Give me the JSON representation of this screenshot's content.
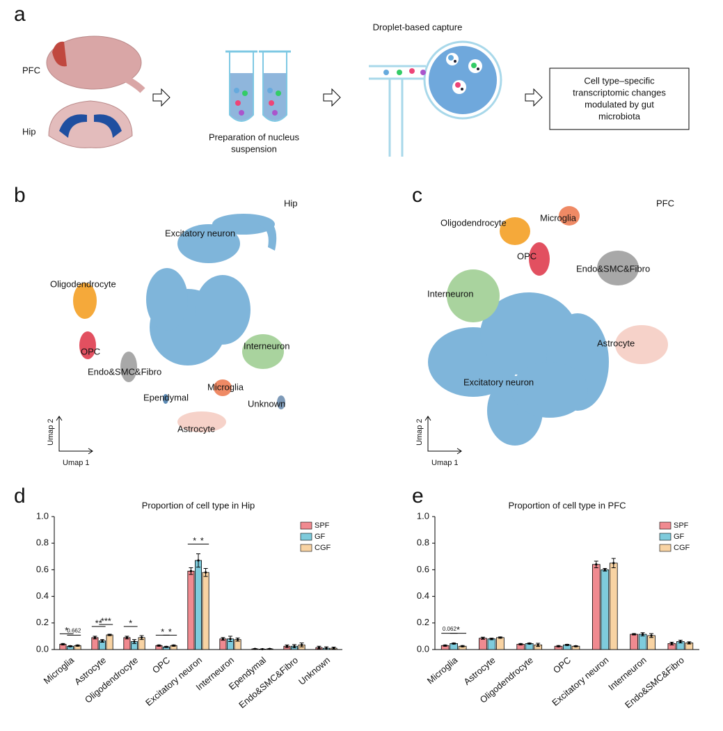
{
  "panels": [
    "a",
    "b",
    "c",
    "d",
    "e"
  ],
  "workflow": {
    "regions": [
      "PFC",
      "Hip"
    ],
    "preparation": [
      "Preparation of  nucleus",
      "suspension"
    ],
    "capture": "Droplet-based capture",
    "result": [
      "Cell type–specific",
      "transcriptomic changes",
      "modulated by gut",
      "microbiota"
    ]
  },
  "umap_hip": {
    "region": "Hip",
    "clusters": [
      "Excitatory neuron",
      "Oligodendrocyte",
      "Interneuron",
      "OPC",
      "Endo&SMC&Fibro",
      "Microglia",
      "Ependymal",
      "Unknown",
      "Astrocyte"
    ],
    "axes": [
      "Umap 1",
      "Umap 2"
    ]
  },
  "umap_pfc": {
    "region": "PFC",
    "clusters": [
      "Oligodendrocyte",
      "Microglia",
      "OPC",
      "Endo&SMC&Fibro",
      "Interneuron",
      "Astrocyte",
      "Excitatory neuron"
    ],
    "axes": [
      "Umap 1",
      "Umap 2"
    ]
  },
  "chart_data": [
    {
      "type": "bar",
      "title": "Proportion of cell type in Hip",
      "categories": [
        "Microglia",
        "Astrocyte",
        "Oligodendrocyte",
        "OPC",
        "Excitatory neuron",
        "Interneuron",
        "Ependymal",
        "Endo&SMC&Fibro",
        "Unknown"
      ],
      "series": [
        {
          "name": "SPF",
          "color": "#f08a90",
          "values": [
            0.04,
            0.09,
            0.09,
            0.03,
            0.59,
            0.08,
            0.005,
            0.025,
            0.015
          ],
          "errors": [
            0.005,
            0.01,
            0.01,
            0.005,
            0.025,
            0.01,
            0.002,
            0.01,
            0.01
          ]
        },
        {
          "name": "GF",
          "color": "#7ecbdc",
          "values": [
            0.025,
            0.065,
            0.06,
            0.02,
            0.67,
            0.08,
            0.003,
            0.025,
            0.01
          ],
          "errors": [
            0.004,
            0.01,
            0.015,
            0.004,
            0.05,
            0.02,
            0.002,
            0.012,
            0.01
          ]
        },
        {
          "name": "CGF",
          "color": "#f8d3a3",
          "values": [
            0.03,
            0.11,
            0.09,
            0.03,
            0.58,
            0.075,
            0.005,
            0.035,
            0.01
          ],
          "errors": [
            0.005,
            0.005,
            0.015,
            0.005,
            0.03,
            0.012,
            0.002,
            0.015,
            0.008
          ]
        }
      ],
      "ylim": [
        0,
        1
      ],
      "yticks": [
        {
          "value": 0,
          "label": "0.0"
        },
        0.2,
        0.4,
        0.6,
        0.8,
        {
          "value": 1,
          "label": "1.0"
        }
      ],
      "legend": "top-right",
      "annotations": [
        {
          "category": "Microglia",
          "series": [
            "SPF",
            "GF"
          ],
          "text": "*"
        },
        {
          "category": "Microglia",
          "series": [
            "GF",
            "CGF"
          ],
          "text": "0.662"
        },
        {
          "category": "Astrocyte",
          "series": [
            "SPF",
            "GF"
          ],
          "text": "**"
        },
        {
          "category": "Astrocyte",
          "series": [
            "GF",
            "CGF"
          ],
          "text": "***"
        },
        {
          "category": "Oligodendrocyte",
          "series": [
            "SPF",
            "GF"
          ],
          "text": "*"
        },
        {
          "category": "OPC",
          "series": [
            "SPF",
            "GF"
          ],
          "text": "*"
        },
        {
          "category": "OPC",
          "series": [
            "GF",
            "CGF"
          ],
          "text": "*"
        },
        {
          "category": "Excitatory neuron",
          "series": [
            "SPF",
            "GF"
          ],
          "text": "*"
        },
        {
          "category": "Excitatory neuron",
          "series": [
            "GF",
            "CGF"
          ],
          "text": "*"
        }
      ]
    },
    {
      "type": "bar",
      "title": "Proportion of cell type in PFC",
      "categories": [
        "Microglia",
        "Astrocyte",
        "Oligodendrocyte",
        "OPC",
        "Excitatory neuron",
        "Interneuron",
        "Endo&SMC&Fibro"
      ],
      "series": [
        {
          "name": "SPF",
          "color": "#f08a90",
          "values": [
            0.03,
            0.085,
            0.04,
            0.025,
            0.64,
            0.115,
            0.045
          ],
          "errors": [
            0.005,
            0.008,
            0.005,
            0.005,
            0.025,
            0.005,
            0.01
          ]
        },
        {
          "name": "GF",
          "color": "#7ecbdc",
          "values": [
            0.045,
            0.08,
            0.045,
            0.035,
            0.6,
            0.115,
            0.06
          ],
          "errors": [
            0.004,
            0.006,
            0.004,
            0.004,
            0.01,
            0.012,
            0.01
          ]
        },
        {
          "name": "CGF",
          "color": "#f8d3a3",
          "values": [
            0.025,
            0.09,
            0.035,
            0.025,
            0.65,
            0.105,
            0.05
          ],
          "errors": [
            0.005,
            0.005,
            0.012,
            0.004,
            0.035,
            0.015,
            0.008
          ]
        }
      ],
      "ylim": [
        0,
        1
      ],
      "yticks": [
        {
          "value": 0,
          "label": "0.0"
        },
        0.2,
        0.4,
        0.6,
        0.8,
        {
          "value": 1,
          "label": "1.0"
        }
      ],
      "legend": "top-right",
      "annotations": [
        {
          "category": "Microglia",
          "series": [
            "SPF",
            "GF"
          ],
          "text": "0.062"
        },
        {
          "category": "Microglia",
          "series": [
            "GF",
            "CGF"
          ],
          "text": "*"
        }
      ]
    }
  ]
}
